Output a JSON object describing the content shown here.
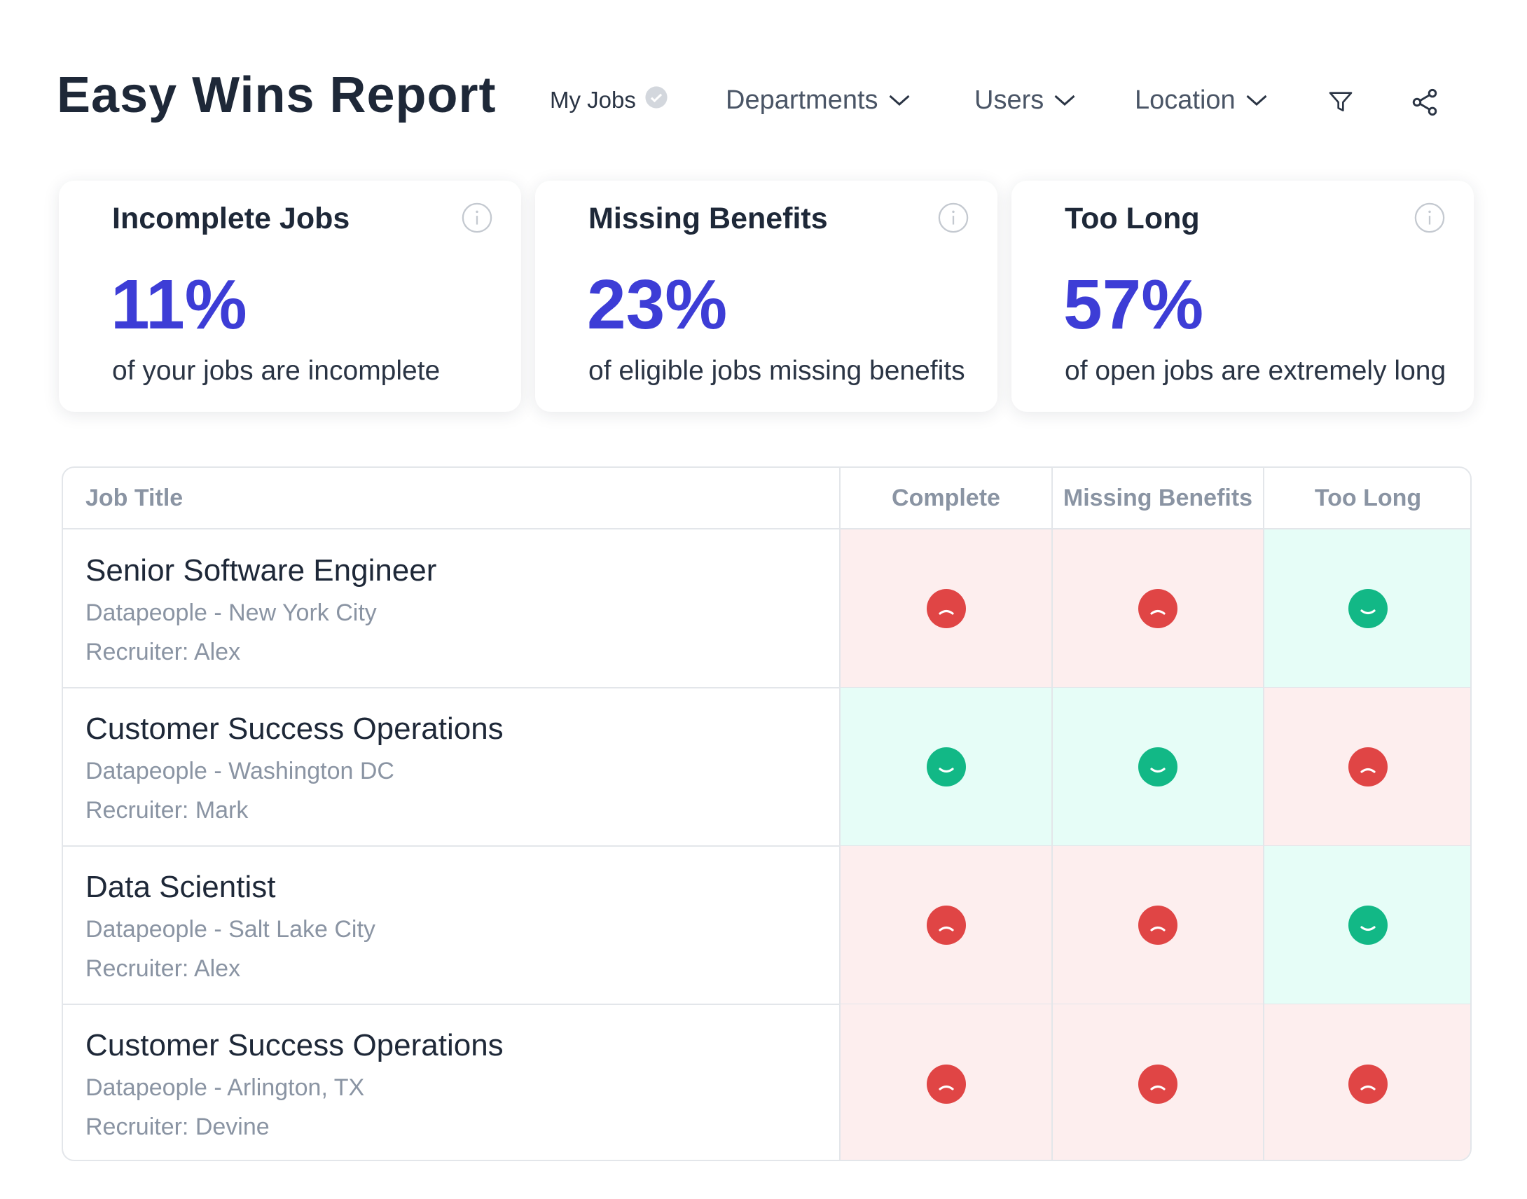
{
  "header": {
    "title": "Easy Wins Report",
    "filters": [
      "My Jobs",
      "Departments",
      "Users",
      "Location"
    ]
  },
  "cards": [
    {
      "title": "Incomplete Jobs",
      "value": "11%",
      "caption": "of your jobs are incomplete"
    },
    {
      "title": "Missing Benefits",
      "value": "23%",
      "caption": "of eligible jobs missing benefits"
    },
    {
      "title": "Too Long",
      "value": "57%",
      "caption": "of open jobs are extremely long"
    }
  ],
  "table": {
    "columns": [
      "Job Title",
      "Complete",
      "Missing Benefits",
      "Too Long"
    ],
    "rows": [
      {
        "title": "Senior Software Engineer",
        "location": "Datapeople - New York City",
        "recruiter": "Recruiter: Alex",
        "status": [
          false,
          false,
          true
        ]
      },
      {
        "title": "Customer Success Operations",
        "location": "Datapeople - Washington DC",
        "recruiter": "Recruiter: Mark",
        "status": [
          true,
          true,
          false
        ]
      },
      {
        "title": "Data Scientist",
        "location": "Datapeople - Salt Lake City",
        "recruiter": "Recruiter: Alex",
        "status": [
          false,
          false,
          true
        ]
      },
      {
        "title": "Customer Success Operations",
        "location": "Datapeople - Arlington, TX",
        "recruiter": "Recruiter: Devine",
        "status": [
          false,
          false,
          false
        ]
      }
    ]
  }
}
